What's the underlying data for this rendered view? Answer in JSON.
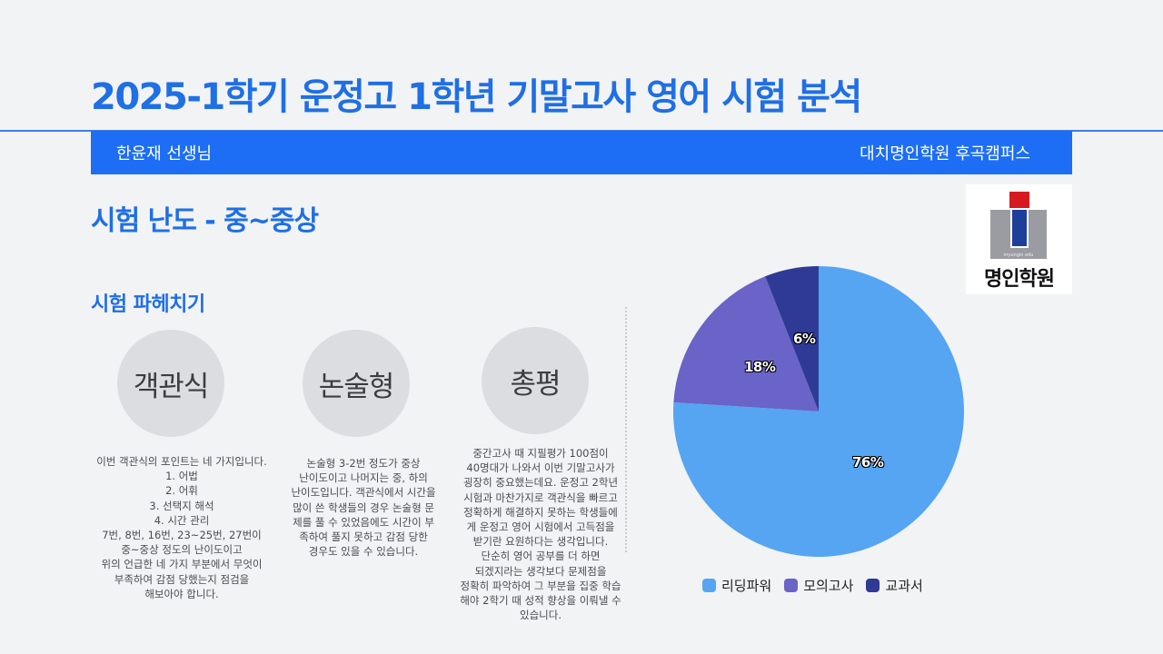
{
  "title": "2025-1학기 운정고 1학년 기말고사 영어 시험 분석",
  "header": {
    "teacher": "한윤재 선생님",
    "academy": "대치명인학원 후곡캠퍼스"
  },
  "difficulty": "시험 난도 - 중~중상",
  "section_title": "시험 파헤치기",
  "logo": {
    "small_text": "myungin edu",
    "name": "명인학원"
  },
  "columns": [
    {
      "label": "객관식",
      "description": "이번 객관식의 포인트는 네 가지입니다.\n1. 어법\n2. 어휘\n3. 선택지 해석\n4. 시간 관리\n7번, 8번, 16번, 23~25번, 27번이\n중~중상 정도의 난이도이고\n위의 언급한 네 가지 부분에서 무엇이\n부족하여 감점 당했는지 점검을\n해보아야 합니다."
    },
    {
      "label": "논술형",
      "description": "논술형 3-2번 정도가 중상\n난이도이고 나머지는 중, 하의\n난이도입니다. 객관식에서 시간을\n많이 쓴 학생들의 경우 논술형 문\n제를 풀 수 있었음에도 시간이 부\n족하여 풀지 못하고 감점 당한\n경우도 있을 수 있습니다."
    },
    {
      "label": "총평",
      "description": "중간고사 때 지필평가 100점이\n40명대가 나와서 이번 기말고사가\n굉장히 중요했는데요. 운정고 2학년\n시험과 마찬가지로 객관식을 빠르고\n정확하게 해결하지 못하는 학생들에\n게 운정고 영어 시험에서 고득점을\n받기란 요원하다는 생각입니다.\n단순히 영어 공부를 더 하면\n되겠지라는 생각보다 문제점을\n정확히 파악하여 그 부분을 집중 학습\n해야 2학기 때 성적 향상을 이뤄낼 수\n있습니다."
    }
  ],
  "chart_data": {
    "type": "pie",
    "title": "",
    "categories": [
      "리딩파워",
      "모의고사",
      "교과서"
    ],
    "values": [
      76,
      18,
      6
    ],
    "labels": [
      "76%",
      "18%",
      "6%"
    ],
    "colors": [
      "#55a5f2",
      "#6a63c8",
      "#2f3a96"
    ],
    "start_angle": "12 o'clock",
    "direction": "clockwise",
    "legend_position": "bottom"
  },
  "colors": {
    "accent": "#1f6fe5",
    "header_bar": "#1d6ef5",
    "background": "#f2f3f5"
  }
}
